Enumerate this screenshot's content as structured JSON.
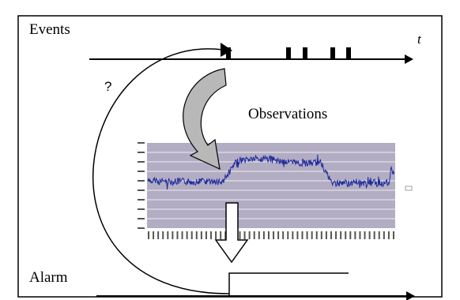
{
  "labels": {
    "events": "Events",
    "time_axis": "t",
    "question": "?",
    "observations": "Observations",
    "alarm": "Alarm"
  },
  "colors": {
    "frame": "#000000",
    "chart_background": "#b3adc3",
    "grid_line": "#ffffff",
    "signal": "#1f2a9c",
    "curved_arrow_fill": "#b8b8b8",
    "block_arrow_fill": "#ffffff"
  },
  "icons": {
    "question_arrow": "curved-arrow-icon",
    "event_to_observation_arrow": "curved-block-arrow-icon",
    "observation_to_alarm_arrow": "down-block-arrow-icon"
  }
}
